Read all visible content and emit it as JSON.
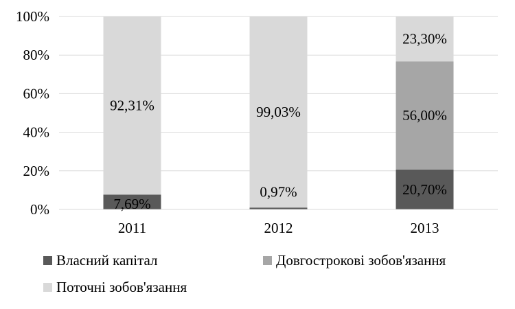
{
  "chart_data": {
    "type": "bar",
    "stacked": "percent",
    "categories": [
      "2011",
      "2012",
      "2013"
    ],
    "series": [
      {
        "name": "Власний капітал",
        "values": [
          7.69,
          0.97,
          20.7
        ],
        "labels": [
          "7,69%",
          "0,97%",
          "20,70%"
        ],
        "color": "#595959"
      },
      {
        "name": "Довгострокові зобов'язання",
        "values": [
          0,
          0,
          56.0
        ],
        "labels": [
          "",
          "",
          "56,00%"
        ],
        "color": "#a6a6a6"
      },
      {
        "name": "Поточні зобов'язання",
        "values": [
          92.31,
          99.03,
          23.3
        ],
        "labels": [
          "92,31%",
          "99,03%",
          "23,30%"
        ],
        "color": "#d9d9d9"
      }
    ],
    "y_ticks": [
      "0%",
      "20%",
      "40%",
      "60%",
      "80%",
      "100%"
    ],
    "ylim": [
      0,
      100
    ],
    "grid": true,
    "legend": "bottom",
    "title": "",
    "xlabel": "",
    "ylabel": ""
  }
}
